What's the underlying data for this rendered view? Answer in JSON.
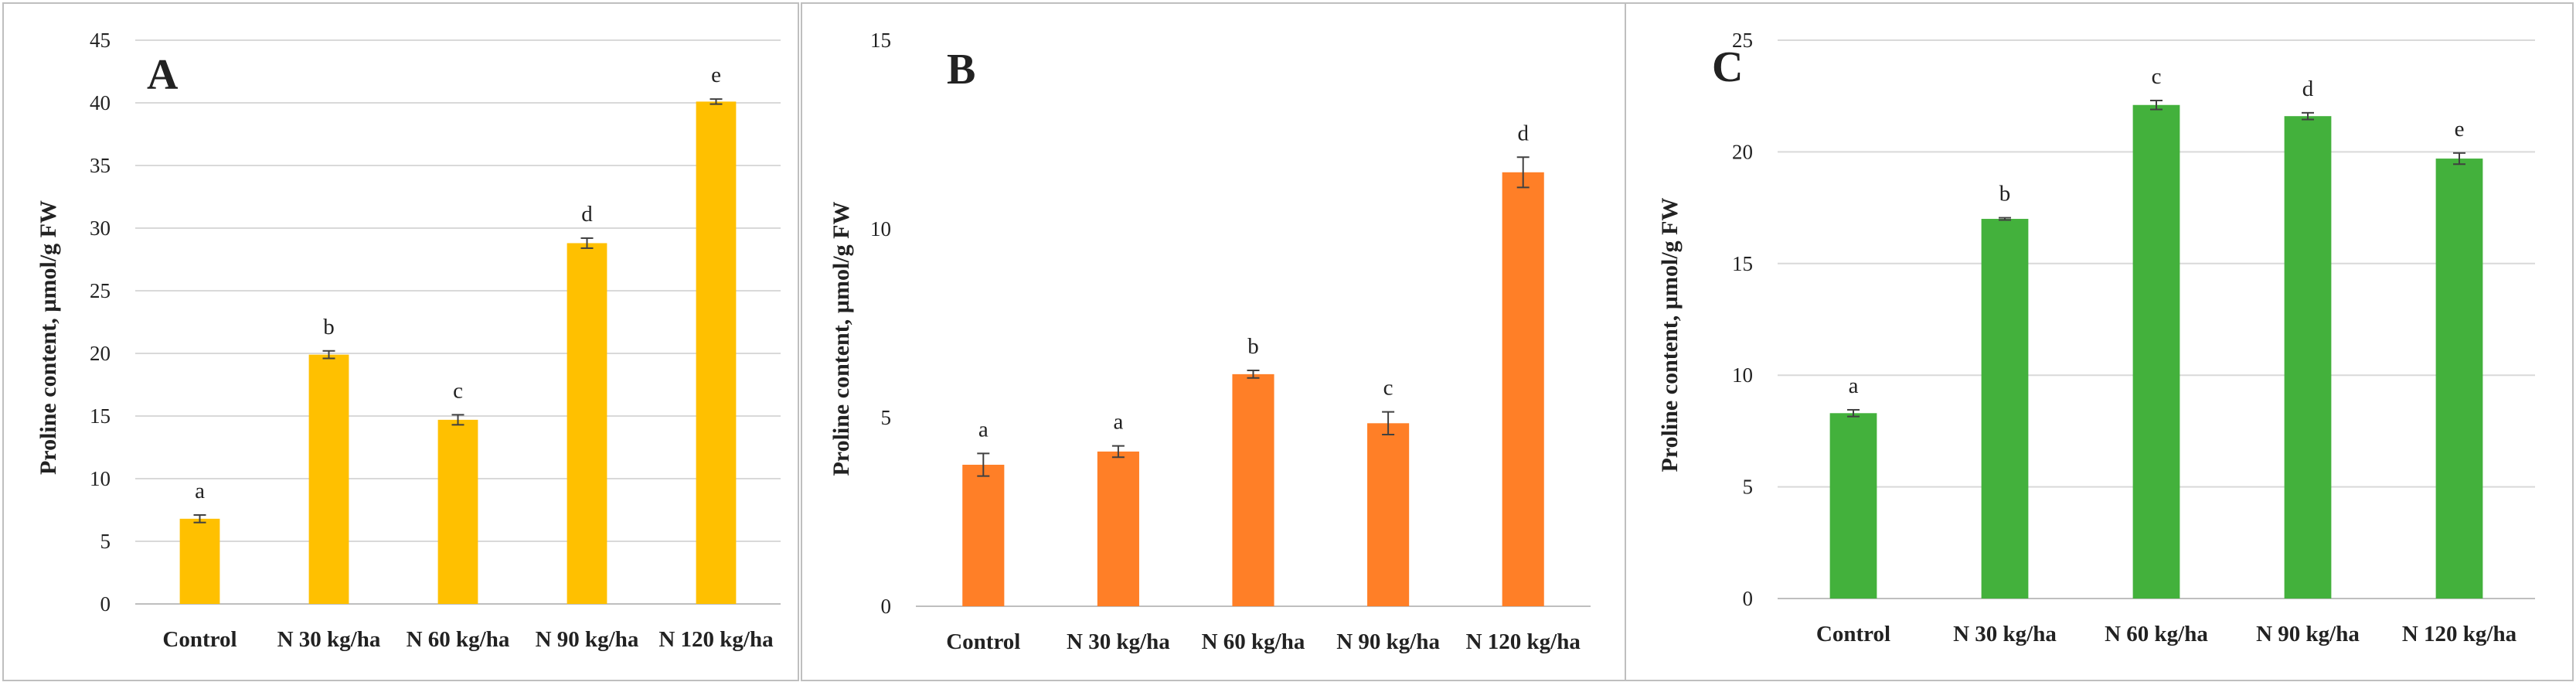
{
  "figure": {
    "frame_color": "#bfbfbf",
    "grid_color": "#d9d9d9",
    "axis_color": "#bfbfbf",
    "text_color": "#222222",
    "error_bar_color": "#404040"
  },
  "chart_data": [
    {
      "type": "bar",
      "panel_label": "A",
      "title": "",
      "xlabel": "",
      "ylabel": "Proline content, µmol/g FW",
      "ylim": [
        0,
        45
      ],
      "yticks": [
        0,
        5,
        10,
        15,
        20,
        25,
        30,
        35,
        40,
        45
      ],
      "grid": true,
      "color": "#FFC000",
      "categories": [
        "Control",
        "N 30 kg/ha",
        "N 60 kg/ha",
        "N 90 kg/ha",
        "N 120 kg/ha"
      ],
      "values": [
        6.8,
        19.9,
        14.7,
        28.8,
        40.1
      ],
      "errors": [
        0.3,
        0.3,
        0.4,
        0.4,
        0.2
      ],
      "letters": [
        "a",
        "b",
        "c",
        "d",
        "e"
      ]
    },
    {
      "type": "bar",
      "panel_label": "B",
      "title": "",
      "xlabel": "",
      "ylabel": "Proline content, µmol/g FW",
      "ylim": [
        0,
        15
      ],
      "yticks": [
        0,
        5,
        10,
        15
      ],
      "grid": false,
      "color": "#FF7F27",
      "categories": [
        "Control",
        "N 30 kg/ha",
        "N 60 kg/ha",
        "N 90 kg/ha",
        "N 120 kg/ha"
      ],
      "values": [
        3.75,
        4.1,
        6.15,
        4.85,
        11.5
      ],
      "errors": [
        0.3,
        0.15,
        0.1,
        0.3,
        0.4
      ],
      "letters": [
        "a",
        "a",
        "b",
        "c",
        "d"
      ]
    },
    {
      "type": "bar",
      "panel_label": "C",
      "title": "",
      "xlabel": "",
      "ylabel": "Proline content, µmol/g FW",
      "ylim": [
        0,
        25
      ],
      "yticks": [
        0,
        5,
        10,
        15,
        20,
        25
      ],
      "grid": true,
      "color": "#43B13C",
      "categories": [
        "Control",
        "N 30 kg/ha",
        "N 60 kg/ha",
        "N 90 kg/ha",
        "N 120 kg/ha"
      ],
      "values": [
        8.3,
        17.0,
        22.1,
        21.6,
        19.7
      ],
      "errors": [
        0.15,
        0.05,
        0.2,
        0.15,
        0.25
      ],
      "letters": [
        "a",
        "b",
        "c",
        "d",
        "e"
      ]
    }
  ]
}
